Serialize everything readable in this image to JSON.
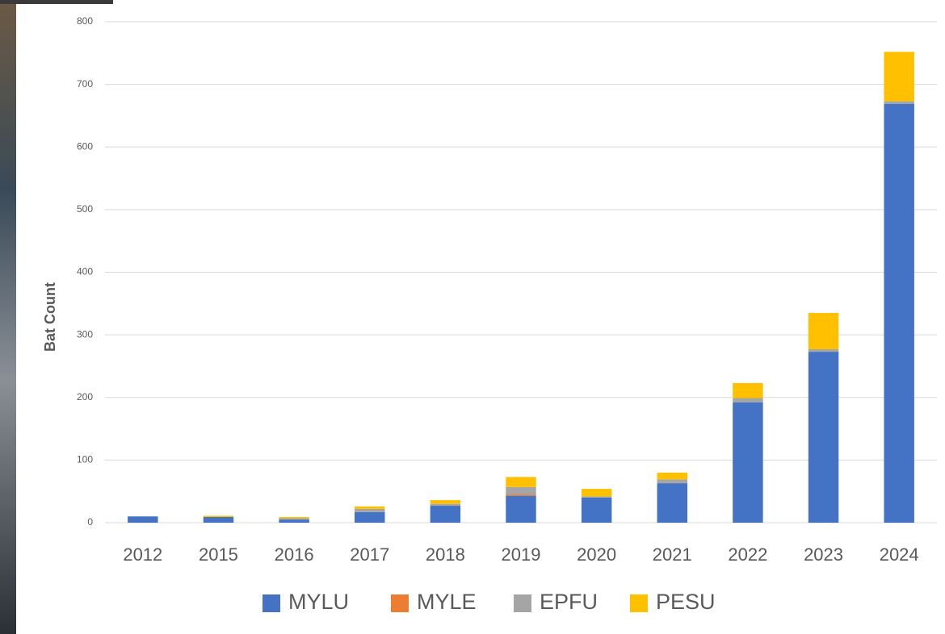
{
  "chart_data": {
    "type": "stacked-bar",
    "y_label": "Bat Count",
    "categories": [
      "2012",
      "2015",
      "2016",
      "2017",
      "2018",
      "2019",
      "2020",
      "2021",
      "2022",
      "2023",
      "2024"
    ],
    "series": [
      {
        "name": "MYLU",
        "color": "#4472c4",
        "values": [
          10,
          9,
          5,
          17,
          27,
          43,
          40,
          63,
          192,
          273,
          669
        ]
      },
      {
        "name": "MYLE",
        "color": "#ed7d31",
        "values": [
          0,
          0,
          0,
          0,
          0,
          2,
          0,
          0,
          0,
          0,
          0
        ]
      },
      {
        "name": "EPFU",
        "color": "#a5a5a5",
        "values": [
          0,
          0,
          2,
          5,
          3,
          12,
          2,
          6,
          7,
          4,
          4
        ]
      },
      {
        "name": "PESU",
        "color": "#ffc000",
        "values": [
          0,
          2,
          2,
          4,
          6,
          16,
          12,
          11,
          24,
          58,
          79
        ]
      }
    ],
    "ylim": [
      0,
      800
    ],
    "yticks": [
      0,
      100,
      200,
      300,
      400,
      500,
      600,
      700,
      800
    ],
    "grid": true,
    "legend": "bottom"
  }
}
